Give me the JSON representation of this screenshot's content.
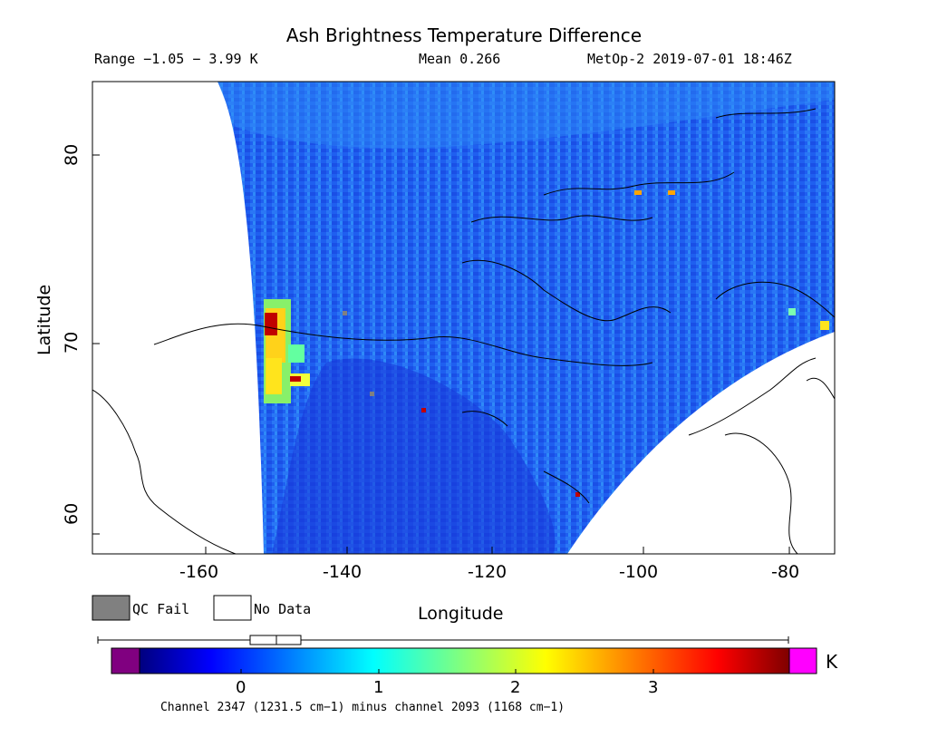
{
  "title": "Ash Brightness Temperature Difference",
  "range_text": "Range −1.05 − 3.99 K",
  "mean_text": "Mean 0.266",
  "satellite_text": "MetOp-2 2019-07-01 18:46Z",
  "map": {
    "x_axis_label": "Longitude",
    "y_axis_label": "Latitude",
    "x_range": [
      -175,
      -75
    ],
    "y_range": [
      58.8,
      84.2
    ],
    "x_ticks": [
      "-160",
      "-140",
      "-120",
      "-100",
      "-80"
    ],
    "y_ticks": [
      "60",
      "70",
      "80"
    ]
  },
  "legend": {
    "qc_fail_label": "QC Fail",
    "no_data_label": "No Data",
    "qc_fail_color": "#808080",
    "no_data_color": "#ffffff"
  },
  "colorbar": {
    "unit": "K",
    "ticks": [
      "0",
      "1",
      "2",
      "3"
    ],
    "range": [
      -0.8,
      4.0
    ],
    "under_color": "#800080",
    "over_color": "#ff00ff",
    "boxplot": {
      "whisker_low": -1.05,
      "q1": 0.05,
      "median": 0.25,
      "q3": 0.43,
      "whisker_high": 3.99
    }
  },
  "caption": "Channel 2347 (1231.5 cm−1) minus channel 2093 (1168 cm−1)"
}
